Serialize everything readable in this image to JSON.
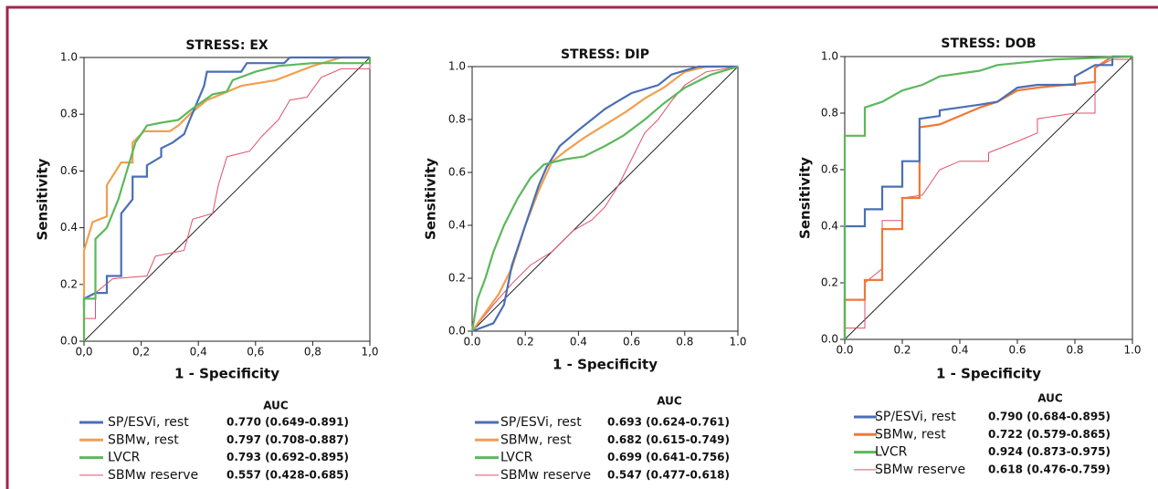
{
  "chart_data": [
    {
      "type": "line",
      "title": "STRESS: EX",
      "xlabel": "1 - Specificity",
      "ylabel": "Sensitivity",
      "legend_title": "AUC",
      "xlim": [
        0,
        1
      ],
      "ylim": [
        0,
        1
      ],
      "xticks": [
        {
          "value": 0,
          "label": "0,0"
        },
        {
          "value": 0.2,
          "label": "0,2"
        },
        {
          "value": 0.4,
          "label": "0,4"
        },
        {
          "value": 0.6,
          "label": "0,6"
        },
        {
          "value": 0.8,
          "label": "0,8"
        },
        {
          "value": 1,
          "label": "1,0"
        }
      ],
      "yticks": [
        {
          "value": 0,
          "label": "0.0"
        },
        {
          "value": 0.2,
          "label": "0.2"
        },
        {
          "value": 0.4,
          "label": "0.4"
        },
        {
          "value": 0.6,
          "label": "0.6"
        },
        {
          "value": 0.8,
          "label": "0.8"
        },
        {
          "value": 1,
          "label": "1.0"
        }
      ],
      "series": [
        {
          "name": "SP/ESVi, rest",
          "auc": "0.770 (0.649-0.891)",
          "color": "#4a6fb5",
          "x": [
            0,
            0,
            0.04,
            0.08,
            0.08,
            0.13,
            0.13,
            0.17,
            0.17,
            0.22,
            0.22,
            0.27,
            0.27,
            0.31,
            0.35,
            0.37,
            0.42,
            0.43,
            0.55,
            0.57,
            0.7,
            0.72,
            1
          ],
          "values": [
            0.12,
            0.15,
            0.17,
            0.17,
            0.23,
            0.23,
            0.45,
            0.5,
            0.58,
            0.58,
            0.62,
            0.65,
            0.68,
            0.7,
            0.73,
            0.78,
            0.9,
            0.95,
            0.95,
            0.98,
            0.98,
            1,
            1
          ]
        },
        {
          "name": "SBMw, rest",
          "auc": "0.797 (0.708-0.887)",
          "color": "#f0a050",
          "x": [
            0,
            0,
            0.03,
            0.08,
            0.08,
            0.13,
            0.17,
            0.17,
            0.21,
            0.3,
            0.33,
            0.37,
            0.43,
            0.48,
            0.55,
            0.67,
            0.8,
            0.9,
            1
          ],
          "values": [
            0,
            0.32,
            0.42,
            0.44,
            0.55,
            0.63,
            0.63,
            0.7,
            0.74,
            0.74,
            0.76,
            0.8,
            0.85,
            0.87,
            0.9,
            0.92,
            0.97,
            1,
            1
          ]
        },
        {
          "name": "LVCR",
          "auc": "0.793 (0.692-0.895)",
          "color": "#5cb85c",
          "x": [
            0,
            0,
            0.04,
            0.04,
            0.08,
            0.12,
            0.15,
            0.18,
            0.22,
            0.27,
            0.33,
            0.38,
            0.45,
            0.5,
            0.52,
            0.6,
            0.68,
            0.8,
            1,
            1
          ],
          "values": [
            0,
            0.15,
            0.15,
            0.36,
            0.4,
            0.5,
            0.6,
            0.7,
            0.76,
            0.77,
            0.78,
            0.82,
            0.87,
            0.88,
            0.92,
            0.95,
            0.97,
            0.98,
            0.98,
            1
          ]
        },
        {
          "name": "SBMw reserve",
          "auc": "0.557 (0.428-0.685)",
          "color": "#e0506a",
          "x": [
            0,
            0,
            0.04,
            0.04,
            0.1,
            0.22,
            0.25,
            0.35,
            0.38,
            0.45,
            0.47,
            0.5,
            0.58,
            0.62,
            0.68,
            0.72,
            0.78,
            0.83,
            0.9,
            1,
            1
          ],
          "values": [
            0,
            0.08,
            0.08,
            0.17,
            0.22,
            0.23,
            0.3,
            0.32,
            0.43,
            0.45,
            0.55,
            0.65,
            0.67,
            0.72,
            0.78,
            0.85,
            0.86,
            0.93,
            0.96,
            0.96,
            1
          ]
        }
      ]
    },
    {
      "type": "line",
      "title": "STRESS: DIP",
      "xlabel": "1 - Specificity",
      "ylabel": "Sensitivity",
      "legend_title": "AUC",
      "xlim": [
        0,
        1
      ],
      "ylim": [
        0,
        1
      ],
      "xticks": [
        {
          "value": 0,
          "label": "0.0"
        },
        {
          "value": 0.2,
          "label": "0.2"
        },
        {
          "value": 0.4,
          "label": "0.4"
        },
        {
          "value": 0.6,
          "label": "0.6"
        },
        {
          "value": 0.8,
          "label": "0.8"
        },
        {
          "value": 1,
          "label": "1.0"
        }
      ],
      "yticks": [
        {
          "value": 0,
          "label": "0.0"
        },
        {
          "value": 0.2,
          "label": "0.2"
        },
        {
          "value": 0.4,
          "label": "0.4"
        },
        {
          "value": 0.6,
          "label": "0.6"
        },
        {
          "value": 0.8,
          "label": "0.8"
        },
        {
          "value": 1,
          "label": "1.0"
        }
      ],
      "series": [
        {
          "name": "SP/ESVi, rest",
          "auc": "0.693 (0.624-0.761)",
          "color": "#4a6fb5",
          "x": [
            0,
            0.08,
            0.12,
            0.15,
            0.2,
            0.25,
            0.28,
            0.33,
            0.4,
            0.45,
            0.5,
            0.55,
            0.6,
            0.7,
            0.75,
            0.85,
            1
          ],
          "values": [
            0,
            0.03,
            0.1,
            0.25,
            0.4,
            0.55,
            0.62,
            0.7,
            0.76,
            0.8,
            0.84,
            0.87,
            0.9,
            0.93,
            0.97,
            1,
            1
          ]
        },
        {
          "name": "SBMw, rest",
          "auc": "0.682 (0.615-0.749)",
          "color": "#f0a050",
          "x": [
            0,
            0.05,
            0.1,
            0.15,
            0.2,
            0.25,
            0.3,
            0.35,
            0.42,
            0.5,
            0.58,
            0.65,
            0.72,
            0.8,
            0.88,
            1
          ],
          "values": [
            0,
            0.07,
            0.14,
            0.24,
            0.4,
            0.53,
            0.64,
            0.68,
            0.73,
            0.78,
            0.83,
            0.88,
            0.92,
            0.98,
            1,
            1
          ]
        },
        {
          "name": "LVCR",
          "auc": "0.699 (0.641-0.756)",
          "color": "#5cb85c",
          "x": [
            0,
            0.02,
            0.05,
            0.08,
            0.12,
            0.17,
            0.22,
            0.27,
            0.35,
            0.42,
            0.5,
            0.57,
            0.65,
            0.72,
            0.8,
            0.9,
            1
          ],
          "values": [
            0,
            0.12,
            0.2,
            0.3,
            0.4,
            0.5,
            0.58,
            0.63,
            0.65,
            0.66,
            0.7,
            0.74,
            0.8,
            0.86,
            0.92,
            0.97,
            1
          ]
        },
        {
          "name": "SBMw reserve",
          "auc": "0.547 (0.477-0.618)",
          "color": "#e0506a",
          "x": [
            0,
            0.08,
            0.15,
            0.22,
            0.3,
            0.38,
            0.45,
            0.5,
            0.55,
            0.6,
            0.65,
            0.7,
            0.75,
            0.8,
            0.88,
            1
          ],
          "values": [
            0,
            0.1,
            0.18,
            0.25,
            0.3,
            0.38,
            0.42,
            0.47,
            0.55,
            0.65,
            0.75,
            0.8,
            0.87,
            0.93,
            0.98,
            1
          ]
        }
      ]
    },
    {
      "type": "line",
      "title": "STRESS: DOB",
      "xlabel": "1 - Specificity",
      "ylabel": "Sensitivity",
      "legend_title": "AUC",
      "xlim": [
        0,
        1
      ],
      "ylim": [
        0,
        1
      ],
      "xticks": [
        {
          "value": 0,
          "label": "0.0"
        },
        {
          "value": 0.2,
          "label": "0.2"
        },
        {
          "value": 0.4,
          "label": "0.4"
        },
        {
          "value": 0.6,
          "label": "0.6"
        },
        {
          "value": 0.8,
          "label": "0.8"
        },
        {
          "value": 1,
          "label": "1.0"
        }
      ],
      "yticks": [
        {
          "value": 0,
          "label": "0.0"
        },
        {
          "value": 0.2,
          "label": "0.2"
        },
        {
          "value": 0.4,
          "label": "0.4"
        },
        {
          "value": 0.6,
          "label": "0.6"
        },
        {
          "value": 0.8,
          "label": "0.8"
        },
        {
          "value": 1,
          "label": "1.0"
        }
      ],
      "series": [
        {
          "name": "SP/ESVi, rest",
          "auc": "0.790 (0.684-0.895)",
          "color": "#4a6fb5",
          "x": [
            0,
            0,
            0.07,
            0.07,
            0.13,
            0.13,
            0.2,
            0.2,
            0.26,
            0.26,
            0.33,
            0.33,
            0.4,
            0.47,
            0.53,
            0.6,
            0.67,
            0.8,
            0.8,
            0.87,
            0.93,
            0.93,
            1
          ],
          "values": [
            0,
            0.4,
            0.4,
            0.46,
            0.46,
            0.54,
            0.54,
            0.63,
            0.63,
            0.78,
            0.79,
            0.81,
            0.82,
            0.83,
            0.84,
            0.89,
            0.9,
            0.9,
            0.93,
            0.97,
            0.97,
            1,
            1
          ]
        },
        {
          "name": "SBMw, rest",
          "auc": "0.722 (0.579-0.865)",
          "color": "#f07838",
          "x": [
            0,
            0,
            0.07,
            0.07,
            0.13,
            0.13,
            0.2,
            0.2,
            0.26,
            0.26,
            0.33,
            0.4,
            0.47,
            0.53,
            0.6,
            0.67,
            0.87,
            0.87,
            0.93,
            1
          ],
          "values": [
            0,
            0.14,
            0.14,
            0.21,
            0.21,
            0.39,
            0.39,
            0.5,
            0.5,
            0.75,
            0.76,
            0.79,
            0.82,
            0.84,
            0.88,
            0.89,
            0.91,
            0.96,
            1,
            1
          ]
        },
        {
          "name": "LVCR",
          "auc": "0.924 (0.873-0.975)",
          "color": "#5cb85c",
          "x": [
            0,
            0,
            0.07,
            0.07,
            0.13,
            0.2,
            0.27,
            0.33,
            0.47,
            0.53,
            0.73,
            1
          ],
          "values": [
            0,
            0.72,
            0.72,
            0.82,
            0.84,
            0.88,
            0.9,
            0.93,
            0.95,
            0.97,
            0.99,
            1
          ]
        },
        {
          "name": "SBMw reserve",
          "auc": "0.618 (0.476-0.759)",
          "color": "#e0506a",
          "x": [
            0,
            0,
            0.07,
            0.07,
            0.13,
            0.13,
            0.2,
            0.2,
            0.27,
            0.33,
            0.4,
            0.5,
            0.5,
            0.6,
            0.67,
            0.67,
            0.8,
            0.87,
            0.87,
            0.93,
            1
          ],
          "values": [
            0,
            0.04,
            0.04,
            0.2,
            0.25,
            0.42,
            0.42,
            0.5,
            0.51,
            0.6,
            0.63,
            0.63,
            0.66,
            0.7,
            0.73,
            0.78,
            0.8,
            0.8,
            0.96,
            0.99,
            0.99
          ]
        }
      ]
    }
  ]
}
